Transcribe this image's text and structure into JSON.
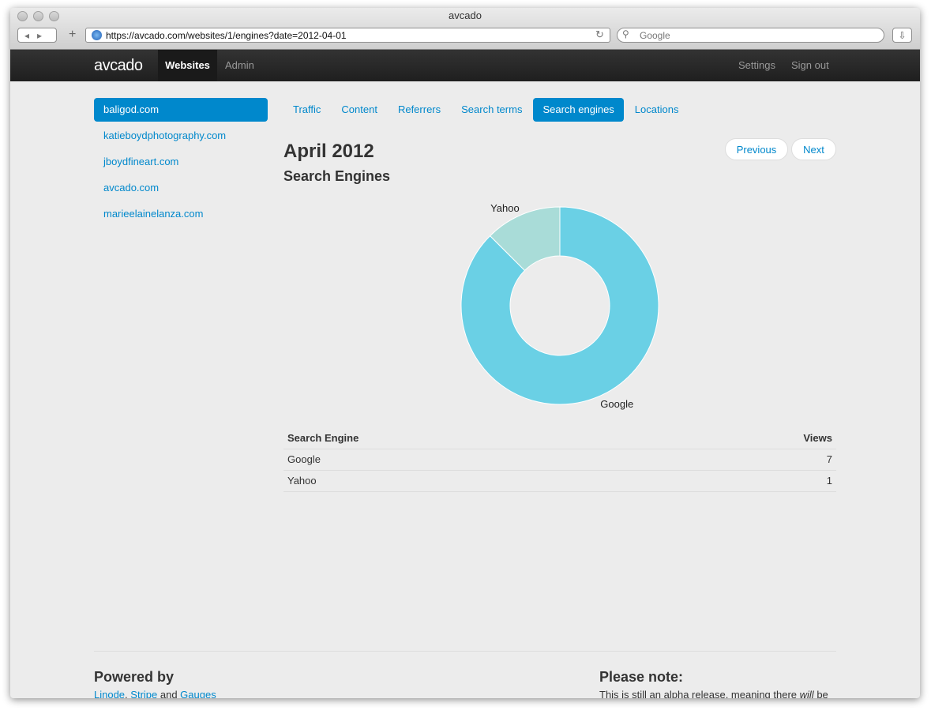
{
  "window": {
    "title": "avcado",
    "url": "https://avcado.com/websites/1/engines?date=2012-04-01",
    "search_placeholder": "Google"
  },
  "navbar": {
    "brand": "avcado",
    "left": [
      "Websites",
      "Admin"
    ],
    "right": [
      "Settings",
      "Sign out"
    ]
  },
  "sidebar": {
    "sites": [
      "baligod.com",
      "katieboydphotography.com",
      "jboydfineart.com",
      "avcado.com",
      "marieelainelanza.com"
    ]
  },
  "tabs": [
    "Traffic",
    "Content",
    "Referrers",
    "Search terms",
    "Search engines",
    "Locations"
  ],
  "header": {
    "title": "April 2012",
    "subtitle": "Search Engines",
    "buttons": [
      "Previous",
      "Next"
    ]
  },
  "chart_data": {
    "type": "pie",
    "categories": [
      "Google",
      "Yahoo"
    ],
    "values": [
      7,
      1
    ],
    "colors": [
      "#6ad0e5",
      "#a9dcd8"
    ]
  },
  "table": {
    "header": [
      "Search Engine",
      "Views"
    ],
    "rows": [
      [
        "Google",
        7
      ],
      [
        "Yahoo",
        1
      ]
    ]
  },
  "footer": {
    "left": {
      "title": "Powered by",
      "items": [
        "Linode",
        ", ",
        "Stripe",
        " and ",
        "Gauges"
      ]
    },
    "right": {
      "title": "Please note:",
      "items": [
        "This is still an alpha release, meaning there ",
        "will",
        " be"
      ]
    }
  }
}
